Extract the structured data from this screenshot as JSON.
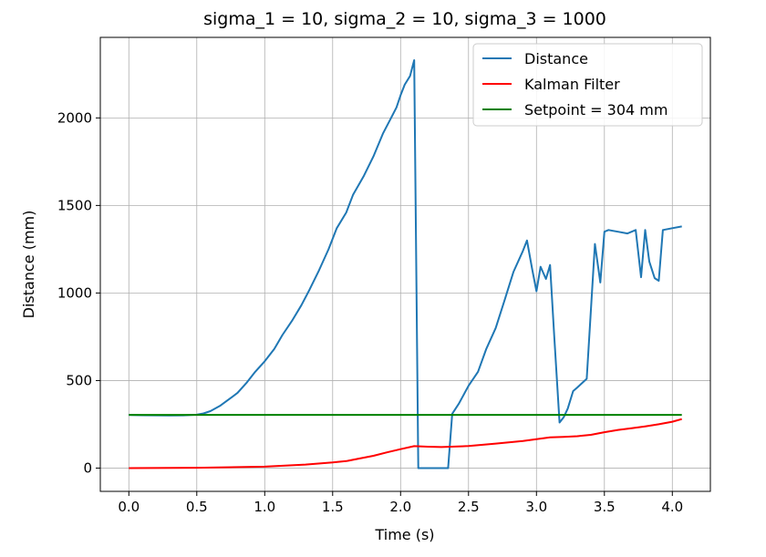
{
  "chart_data": {
    "type": "line",
    "title": "sigma_1 = 10, sigma_2 = 10, sigma_3 = 1000",
    "xlabel": "Time (s)",
    "ylabel": "Distance (mm)",
    "xlim": [
      -0.21,
      4.28
    ],
    "ylim": [
      -133,
      2460
    ],
    "xticks": [
      0.0,
      0.5,
      1.0,
      1.5,
      2.0,
      2.5,
      3.0,
      3.5,
      4.0
    ],
    "xtick_labels": [
      "0.0",
      "0.5",
      "1.0",
      "1.5",
      "2.0",
      "2.5",
      "3.0",
      "3.5",
      "4.0"
    ],
    "yticks": [
      0,
      500,
      1000,
      1500,
      2000
    ],
    "ytick_labels": [
      "0",
      "500",
      "1000",
      "1500",
      "2000"
    ],
    "grid": true,
    "legend_position": "top-right",
    "series": [
      {
        "name": "Distance",
        "color": "#1f77b4",
        "x": [
          0.0,
          0.1,
          0.2,
          0.3,
          0.4,
          0.5,
          0.55,
          0.6,
          0.67,
          0.75,
          0.8,
          0.87,
          0.93,
          1.0,
          1.07,
          1.13,
          1.2,
          1.27,
          1.33,
          1.4,
          1.47,
          1.53,
          1.6,
          1.65,
          1.73,
          1.8,
          1.87,
          1.93,
          1.97,
          2.0,
          2.03,
          2.07,
          2.1,
          2.13,
          2.2,
          2.3,
          2.35,
          2.38,
          2.43,
          2.5,
          2.57,
          2.63,
          2.7,
          2.77,
          2.83,
          2.9,
          2.93,
          2.97,
          3.0,
          3.03,
          3.07,
          3.1,
          3.13,
          3.17,
          3.2,
          3.23,
          3.27,
          3.3,
          3.37,
          3.43,
          3.47,
          3.5,
          3.53,
          3.6,
          3.67,
          3.73,
          3.77,
          3.8,
          3.83,
          3.87,
          3.9,
          3.93,
          4.0,
          4.07
        ],
        "y": [
          304,
          302,
          301,
          300,
          301,
          305,
          312,
          325,
          355,
          400,
          430,
          490,
          550,
          610,
          680,
          760,
          840,
          930,
          1020,
          1130,
          1250,
          1370,
          1460,
          1560,
          1670,
          1780,
          1910,
          2000,
          2060,
          2130,
          2190,
          2240,
          2330,
          0,
          0,
          0,
          0,
          310,
          370,
          470,
          550,
          680,
          800,
          970,
          1120,
          1240,
          1300,
          1130,
          1010,
          1150,
          1080,
          1160,
          760,
          260,
          290,
          340,
          440,
          460,
          510,
          1280,
          1060,
          1350,
          1360,
          1350,
          1340,
          1360,
          1090,
          1360,
          1180,
          1085,
          1070,
          1360,
          1370,
          1380
        ]
      },
      {
        "name": "Kalman Filter",
        "color": "#ff0000",
        "x": [
          0.0,
          0.5,
          1.0,
          1.3,
          1.5,
          1.6,
          1.7,
          1.8,
          1.9,
          2.0,
          2.1,
          2.2,
          2.3,
          2.5,
          2.7,
          2.9,
          3.0,
          3.1,
          3.2,
          3.3,
          3.4,
          3.5,
          3.6,
          3.7,
          3.8,
          3.9,
          4.0,
          4.07
        ],
        "y": [
          0,
          2,
          8,
          20,
          32,
          40,
          55,
          70,
          90,
          108,
          125,
          122,
          120,
          126,
          140,
          155,
          165,
          175,
          178,
          182,
          190,
          205,
          218,
          228,
          238,
          250,
          265,
          280
        ]
      },
      {
        "name": "Setpoint = 304 mm",
        "color": "#008000",
        "x": [
          0.0,
          4.07
        ],
        "y": [
          304,
          304
        ]
      }
    ]
  }
}
